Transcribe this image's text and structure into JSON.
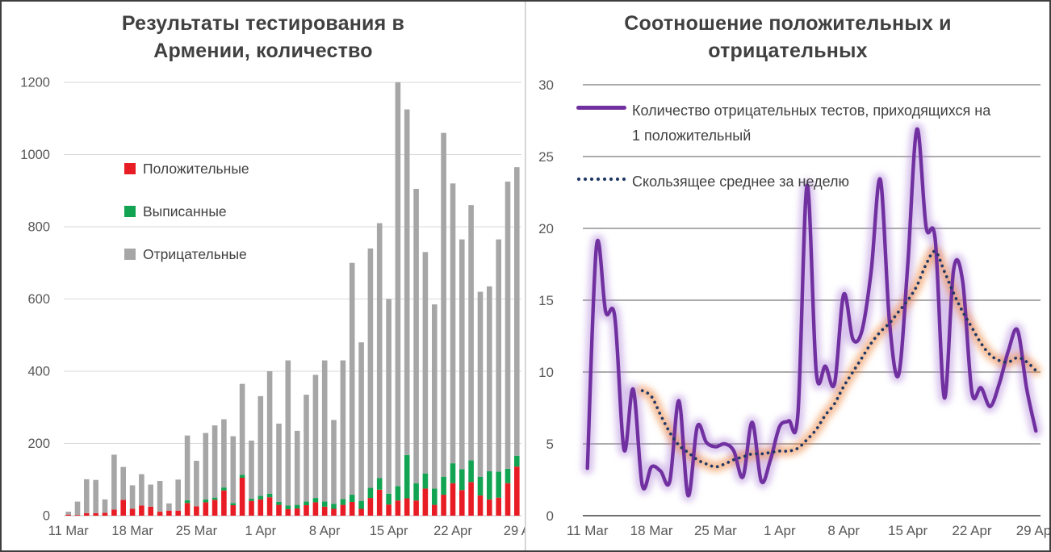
{
  "frame": {
    "border_color": "#3f3f3f",
    "divider_color": "#c9c9c9",
    "background": "#ffffff"
  },
  "chart_data": [
    {
      "type": "bar",
      "stacked": true,
      "title_line1": "Результаты тестирования в",
      "title_line2": "Армении, количество",
      "title_color": "#404040",
      "grid_on": true,
      "grid_color": "#D9D9D9",
      "axis_line_color": "#BFBFBF",
      "tick_color": "#595959",
      "ylim": [
        0,
        1200
      ],
      "y_ticks": [
        0,
        200,
        400,
        600,
        800,
        1000,
        1200
      ],
      "x_tick_days": [
        0,
        7,
        14,
        21,
        28,
        35,
        42,
        49
      ],
      "x_tick_labels": [
        "11 Mar",
        "18 Mar",
        "25 Mar",
        "1 Apr",
        "8 Apr",
        "15 Apr",
        "22 Apr",
        "29 A"
      ],
      "legend_position": "inside-upper-left",
      "legend": [
        {
          "label": "Положительные",
          "color": "#E81C24"
        },
        {
          "label": "Выписанные",
          "color": "#12A452"
        },
        {
          "label": "Отрицательные",
          "color": "#A6A6A6"
        }
      ],
      "categories": [
        "11 Mar",
        "12 Mar",
        "13 Mar",
        "14 Mar",
        "15 Mar",
        "16 Mar",
        "17 Mar",
        "18 Mar",
        "19 Mar",
        "20 Mar",
        "21 Mar",
        "22 Mar",
        "23 Mar",
        "24 Mar",
        "25 Mar",
        "26 Mar",
        "27 Mar",
        "28 Mar",
        "29 Mar",
        "30 Mar",
        "31 Mar",
        "1 Apr",
        "2 Apr",
        "3 Apr",
        "4 Apr",
        "5 Apr",
        "6 Apr",
        "7 Apr",
        "8 Apr",
        "9 Apr",
        "10 Apr",
        "11 Apr",
        "12 Apr",
        "13 Apr",
        "14 Apr",
        "15 Apr",
        "16 Apr",
        "17 Apr",
        "18 Apr",
        "19 Apr",
        "20 Apr",
        "21 Apr",
        "22 Apr",
        "23 Apr",
        "24 Apr",
        "25 Apr",
        "26 Apr",
        "27 Apr",
        "28 Apr",
        "29 Apr"
      ],
      "series": [
        {
          "name": "Положительные",
          "color": "#E81C24",
          "values": [
            3,
            2,
            7,
            7,
            8,
            17,
            44,
            19,
            28,
            25,
            11,
            14,
            14,
            35,
            26,
            37,
            44,
            70,
            29,
            105,
            41,
            45,
            51,
            30,
            18,
            20,
            29,
            37,
            25,
            19,
            30,
            38,
            19,
            49,
            72,
            31,
            42,
            48,
            42,
            75,
            30,
            58,
            90,
            71,
            93,
            56,
            45,
            50,
            90,
            136
          ]
        },
        {
          "name": "Выписанные",
          "color": "#12A452",
          "values": [
            0,
            0,
            0,
            0,
            0,
            0,
            0,
            0,
            0,
            0,
            0,
            0,
            0,
            8,
            0,
            8,
            6,
            8,
            6,
            8,
            6,
            10,
            10,
            8,
            10,
            10,
            10,
            12,
            14,
            14,
            16,
            20,
            22,
            28,
            32,
            30,
            40,
            120,
            48,
            42,
            45,
            50,
            55,
            58,
            60,
            52,
            78,
            72,
            40,
            30
          ]
        },
        {
          "name": "Отрицательные",
          "color": "#A6A6A6",
          "values": [
            8,
            37,
            94,
            92,
            37,
            152,
            91,
            65,
            87,
            61,
            85,
            20,
            86,
            179,
            126,
            184,
            200,
            189,
            185,
            252,
            161,
            276,
            339,
            217,
            402,
            205,
            296,
            341,
            391,
            232,
            384,
            642,
            439,
            663,
            706,
            539,
            1118,
            957,
            815,
            613,
            510,
            952,
            775,
            636,
            707,
            512,
            512,
            643,
            795,
            799
          ]
        }
      ]
    },
    {
      "type": "line",
      "title_line1": "Соотношение положительных и",
      "title_line2": "отрицательных",
      "title_color": "#404040",
      "grid_on": true,
      "grid_color": "#595959",
      "axis_line_color": "#404040",
      "tick_color": "#595959",
      "ylim": [
        0,
        30
      ],
      "y_ticks": [
        0,
        5,
        10,
        15,
        20,
        25,
        30
      ],
      "x_tick_days": [
        0,
        7,
        14,
        21,
        28,
        35,
        42,
        49
      ],
      "x_tick_labels": [
        "11 Mar",
        "18 Mar",
        "25 Mar",
        "1 Apr",
        "8 Apr",
        "15 Apr",
        "22 Apr",
        "29 Apr"
      ],
      "legend_position": "inside-upper-left",
      "legend": [
        {
          "label_line1": "Количество отрицательных тестов, приходящихся на",
          "label_line2": "1 положительный",
          "color": "#7030A0",
          "style": "solid",
          "glow": "rgba(171,126,216,0.45)"
        },
        {
          "label_line1": "Скользящее среднее за неделю",
          "label_line2": "",
          "color": "#1F3864",
          "style": "dotted",
          "glow": "rgba(237,125,49,0.50)"
        }
      ],
      "categories": [
        "11 Mar",
        "12 Mar",
        "13 Mar",
        "14 Mar",
        "15 Mar",
        "16 Mar",
        "17 Mar",
        "18 Mar",
        "19 Mar",
        "20 Mar",
        "21 Mar",
        "22 Mar",
        "23 Mar",
        "24 Mar",
        "25 Mar",
        "26 Mar",
        "27 Mar",
        "28 Mar",
        "29 Mar",
        "30 Mar",
        "31 Mar",
        "1 Apr",
        "2 Apr",
        "3 Apr",
        "4 Apr",
        "5 Apr",
        "6 Apr",
        "7 Apr",
        "8 Apr",
        "9 Apr",
        "10 Apr",
        "11 Apr",
        "12 Apr",
        "13 Apr",
        "14 Apr",
        "15 Apr",
        "16 Apr",
        "17 Apr",
        "18 Apr",
        "19 Apr",
        "20 Apr",
        "21 Apr",
        "22 Apr",
        "23 Apr",
        "24 Apr",
        "25 Apr",
        "26 Apr",
        "27 Apr",
        "28 Apr",
        "29 Apr"
      ],
      "series": [
        {
          "name": "Количество отрицательных тестов, приходящихся на 1 положительный",
          "color": "#7030A0",
          "style": "solid",
          "values": [
            3.3,
            18.8,
            14.2,
            13.8,
            4.6,
            8.8,
            2.1,
            3.4,
            3.1,
            2.4,
            8.0,
            1.4,
            6.2,
            5.1,
            4.8,
            5.0,
            4.5,
            2.7,
            6.5,
            2.4,
            3.9,
            6.2,
            6.6,
            7.1,
            23.0,
            10.0,
            10.4,
            9.2,
            15.4,
            12.3,
            12.9,
            17.0,
            23.4,
            13.5,
            9.8,
            17.5,
            26.9,
            20.1,
            19.2,
            8.2,
            17.1,
            16.3,
            8.6,
            8.9,
            7.6,
            9.2,
            11.5,
            12.9,
            8.8,
            5.9
          ]
        },
        {
          "name": "Скользящее среднее за неделю",
          "color": "#1F3864",
          "style": "dotted",
          "values": [
            null,
            null,
            null,
            null,
            null,
            null,
            8.7,
            8.3,
            7.0,
            5.8,
            4.9,
            4.4,
            3.9,
            3.6,
            3.4,
            3.6,
            3.9,
            4.1,
            4.3,
            4.3,
            4.4,
            4.5,
            4.5,
            4.7,
            5.3,
            6.0,
            7.0,
            7.8,
            9.0,
            10.0,
            11.0,
            12.0,
            12.8,
            13.4,
            14.2,
            15.0,
            16.0,
            17.5,
            18.4,
            17.0,
            15.5,
            14.2,
            13.1,
            12.0,
            11.2,
            10.8,
            10.7,
            11.0,
            10.7,
            10.1
          ]
        }
      ]
    }
  ]
}
